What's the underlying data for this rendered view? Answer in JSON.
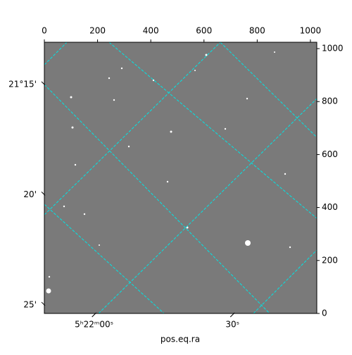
{
  "chart_data": {
    "type": "image",
    "xlabel": "pos.eq.ra",
    "xlim": [
      0,
      1024
    ],
    "xticks": [
      0,
      200,
      400,
      600,
      800,
      1000
    ],
    "ylim": [
      0,
      1024
    ],
    "yticks": [
      0,
      200,
      400,
      600,
      800,
      1000
    ],
    "ra_lim": [
      5.36367,
      5.38008
    ],
    "ra_ticks": [
      {
        "value": 5.366667,
        "label": "5ʰ22ᵐ00ˢ"
      },
      {
        "value": 5.375,
        "label": "30ˢ"
      }
    ],
    "dec_lim": [
      21.2181,
      21.4231
    ],
    "dec_ticks": [
      {
        "value": 21.25,
        "label": "21°15'"
      },
      {
        "value": 21.333333,
        "label": "20'"
      },
      {
        "value": 21.416667,
        "label": "25'"
      }
    ],
    "grid": true,
    "grid_color": "#00e5e5"
  }
}
